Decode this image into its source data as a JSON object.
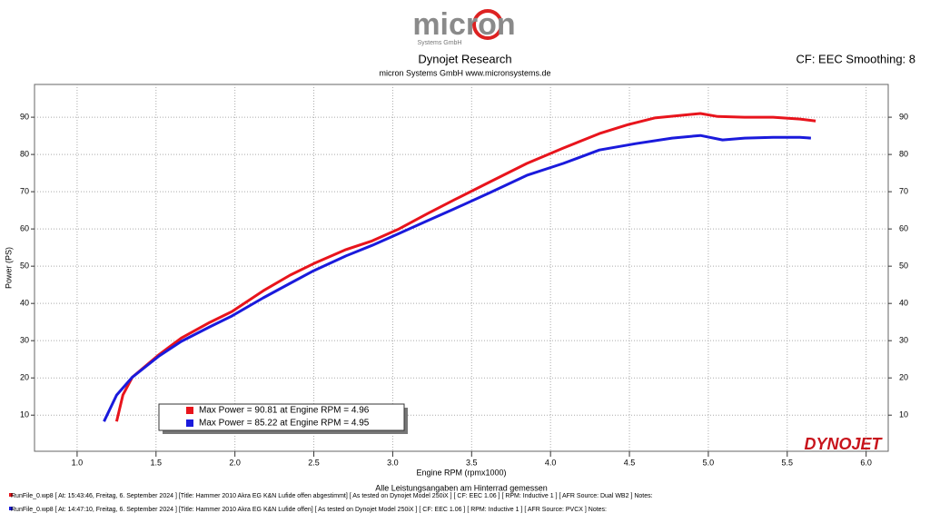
{
  "logo": {
    "brand": "micron",
    "sub": "Systems GmbH"
  },
  "header": {
    "title": "Dynojet Research",
    "subtitle": "micron Systems GmbH  www.micronsystems.de",
    "settings": "CF: EEC Smoothing: 8"
  },
  "brand_logo": "DYNOJET",
  "footer": [
    "RunFile_0.wp8 [ At: 15:43:46, Freitag, 6. September 2024 ] [Title: Hammer 2010 Akra EG K&N Lufide offen abgestimmt] [ As tested on Dynojet Model 250iX ] [ CF: EEC 1.06 ] [ RPM: Inductive 1 ] [ AFR Source: Dual WB2 ] Notes:",
    "RunFile_0.wp8 [ At: 14:47:10, Freitag, 6. September 2024 ] [Title: Hammer 2010 Akra EG K&N Lufide offen] [ As tested on Dynojet Model 250iX ] [ CF: EEC 1.06 ] [ RPM: Inductive 1 ] [ AFR Source: PVCX ] Notes:"
  ],
  "chart_data": {
    "type": "line",
    "x_label": "Engine RPM (rpmx1000)",
    "note": "Alle Leistungsangaben am Hinterrad gemessen",
    "y_label": "Power (PS)",
    "xlim": [
      0.73,
      6.14
    ],
    "ylim": [
      0.3,
      98.8
    ],
    "y2lim": [
      0.3,
      98.8
    ],
    "xticks": [
      {
        "value": 1,
        "label": "1.0"
      },
      1.5,
      {
        "value": 2,
        "label": "2.0"
      },
      2.5,
      {
        "value": 3,
        "label": "3.0"
      },
      3.5,
      {
        "value": 4,
        "label": "4.0"
      },
      4.5,
      {
        "value": 5,
        "label": "5.0"
      },
      5.5,
      {
        "value": 6,
        "label": "6.0"
      }
    ],
    "yticks": [
      10,
      20,
      30,
      40,
      50,
      60,
      70,
      80,
      90
    ],
    "y2ticks": [
      10,
      20,
      30,
      40,
      50,
      60,
      70,
      80,
      90
    ],
    "grid": true,
    "series": [
      {
        "name": "Max Power = 90.81 at Engine RPM = 4.96",
        "color": "#e8141c",
        "x": [
          1.25,
          1.29,
          1.35,
          1.52,
          1.66,
          1.84,
          1.98,
          2.18,
          2.35,
          2.5,
          2.7,
          2.87,
          3.04,
          3.22,
          3.39,
          3.62,
          3.85,
          4.08,
          4.31,
          4.49,
          4.66,
          4.83,
          4.95,
          5.06,
          5.23,
          5.41,
          5.58,
          5.68
        ],
        "values": [
          8.3,
          15.4,
          20.2,
          26.3,
          30.7,
          34.9,
          37.8,
          43.4,
          47.6,
          50.7,
          54.4,
          56.8,
          60,
          64.1,
          67.8,
          72.7,
          77.6,
          81.7,
          85.6,
          88,
          89.8,
          90.5,
          91,
          90.2,
          90,
          90,
          89.5,
          89
        ]
      },
      {
        "name": "Max Power = 85.22 at Engine RPM = 4.95",
        "color": "#1a1adc",
        "x": [
          1.17,
          1.25,
          1.35,
          1.52,
          1.66,
          1.84,
          1.98,
          2.18,
          2.35,
          2.5,
          2.7,
          2.87,
          3.04,
          3.22,
          3.39,
          3.62,
          3.85,
          4.08,
          4.31,
          4.54,
          4.77,
          4.95,
          5.09,
          5.23,
          5.41,
          5.58,
          5.65
        ],
        "values": [
          8.3,
          15.4,
          20.2,
          25.9,
          29.8,
          33.7,
          36.6,
          41.5,
          45.4,
          48.8,
          52.7,
          55.6,
          58.8,
          62.2,
          65.4,
          69.8,
          74.4,
          77.6,
          81.2,
          82.9,
          84.4,
          85.1,
          83.9,
          84.4,
          84.6,
          84.6,
          84.4
        ]
      }
    ]
  }
}
